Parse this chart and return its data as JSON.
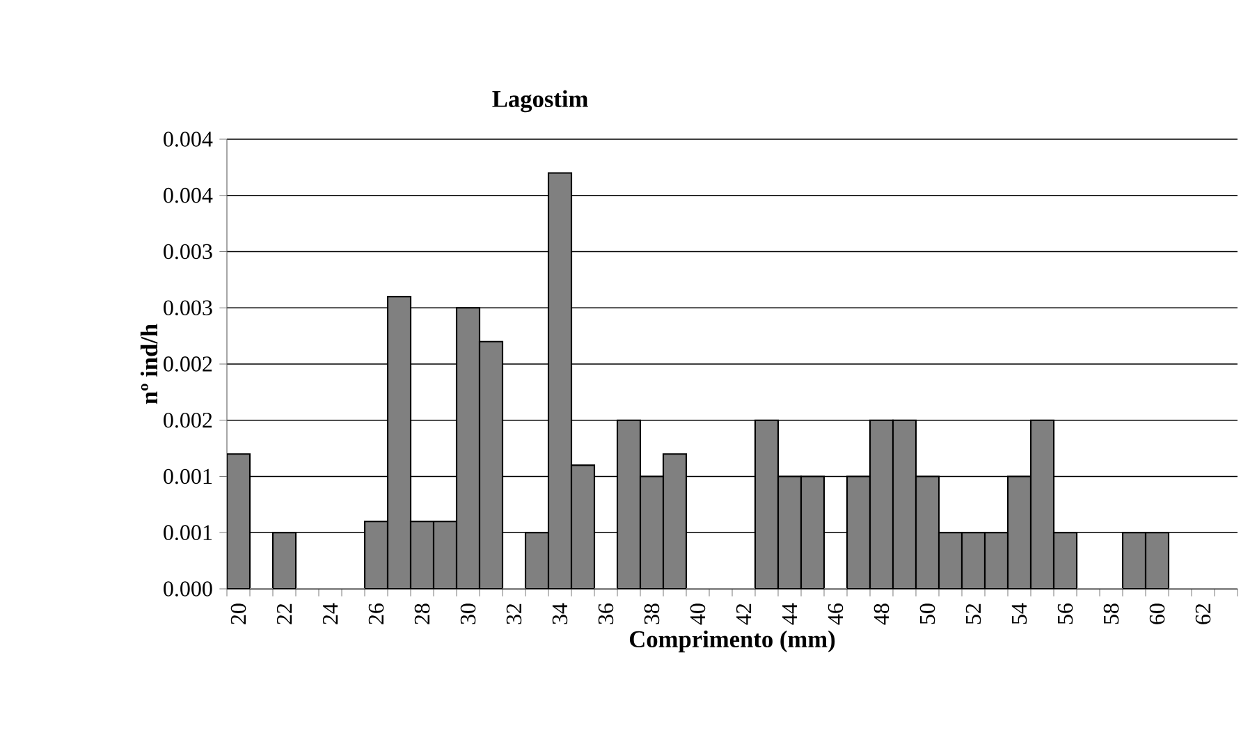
{
  "chart_data": {
    "type": "bar",
    "title": "Lagostim",
    "xlabel": "Comprimento (mm)",
    "ylabel": "nº ind/h",
    "categories": [
      "20",
      null,
      "22",
      null,
      "24",
      null,
      "26",
      null,
      "28",
      null,
      "30",
      null,
      "32",
      null,
      "34",
      null,
      "36",
      null,
      "38",
      null,
      "40",
      null,
      "42",
      null,
      "44",
      null,
      "46",
      null,
      "48",
      null,
      "50",
      null,
      "52",
      null,
      "54",
      null,
      "56",
      null,
      "58",
      null,
      "60",
      null,
      "62",
      null
    ],
    "values": [
      0.0012,
      0,
      0.0005,
      0,
      0,
      0,
      0.0006,
      0.0026,
      0.0006,
      0.0006,
      0.0025,
      0.0022,
      0,
      0.0005,
      0.0037,
      0.0011,
      0,
      0.0015,
      0.001,
      0.0012,
      0,
      0,
      0,
      0.0015,
      0.001,
      0.001,
      0,
      0.001,
      0.0015,
      0.0015,
      0.001,
      0.0005,
      0.0005,
      0.0005,
      0.001,
      0.0015,
      0.0005,
      0,
      0,
      0.0005,
      0.0005,
      0,
      0,
      0
    ],
    "color": "#808080",
    "ylim": [
      0,
      0.004
    ],
    "yticks": [
      {
        "value": 0,
        "label": "0.000"
      },
      {
        "value": 0.0005,
        "label": "0.001"
      },
      {
        "value": 0.001,
        "label": "0.001"
      },
      {
        "value": 0.0015,
        "label": "0.002"
      },
      {
        "value": 0.002,
        "label": "0.002"
      },
      {
        "value": 0.0025,
        "label": "0.003"
      },
      {
        "value": 0.003,
        "label": "0.003"
      },
      {
        "value": 0.0035,
        "label": "0.004"
      },
      {
        "value": 0.004,
        "label": "0.004"
      }
    ],
    "grid": "y"
  }
}
